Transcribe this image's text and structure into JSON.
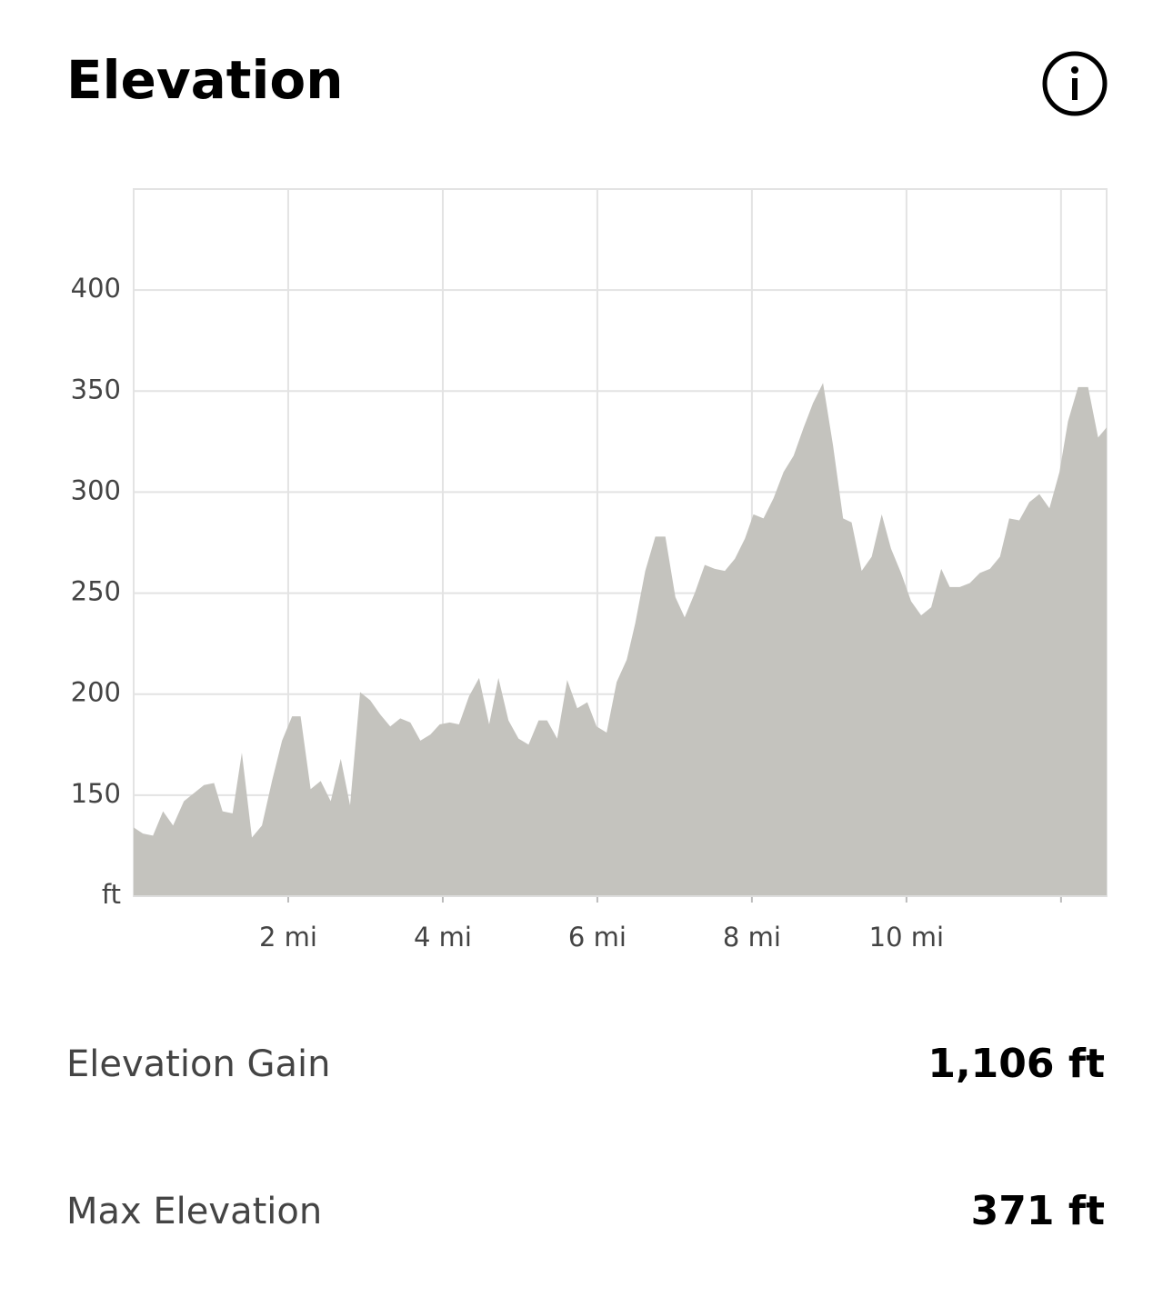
{
  "header": {
    "title": "Elevation"
  },
  "chart_data": {
    "type": "area",
    "color": "#c4c3be",
    "grid": true,
    "x": [
      0,
      0.12,
      0.25,
      0.38,
      0.51,
      0.65,
      0.78,
      0.91,
      1.04,
      1.15,
      1.28,
      1.4,
      1.53,
      1.66,
      1.79,
      1.92,
      2.05,
      2.16,
      2.29,
      2.42,
      2.55,
      2.68,
      2.8,
      2.93,
      3.06,
      3.19,
      3.32,
      3.45,
      3.58,
      3.71,
      3.84,
      3.96,
      4.09,
      4.21,
      4.34,
      4.47,
      4.6,
      4.72,
      4.85,
      4.98,
      5.11,
      5.24,
      5.35,
      5.48,
      5.61,
      5.74,
      5.87,
      5.99,
      6.12,
      6.25,
      6.38,
      6.49,
      6.62,
      6.75,
      6.88,
      7.01,
      7.13,
      7.26,
      7.39,
      7.52,
      7.65,
      7.78,
      7.91,
      8.02,
      8.15,
      8.28,
      8.41,
      8.54,
      8.67,
      8.79,
      8.92,
      9.05,
      9.18,
      9.29,
      9.42,
      9.55,
      9.68,
      9.8,
      9.93,
      10.06,
      10.19,
      10.32,
      10.45,
      10.56,
      10.69,
      10.82,
      10.95,
      11.08,
      11.21,
      11.33,
      11.46,
      11.59,
      11.72,
      11.85,
      11.98,
      12.09,
      12.22,
      12.35,
      12.48,
      12.59
    ],
    "values": [
      134,
      131,
      130,
      142,
      135,
      147,
      151,
      155,
      156,
      142,
      141,
      171,
      129,
      135,
      157,
      177,
      189,
      189,
      153,
      157,
      147,
      168,
      145,
      201,
      197,
      190,
      184,
      188,
      186,
      177,
      180,
      185,
      186,
      185,
      199,
      208,
      185,
      208,
      187,
      178,
      175,
      187,
      187,
      178,
      207,
      193,
      196,
      184,
      181,
      206,
      217,
      235,
      261,
      278,
      278,
      248,
      238,
      250,
      264,
      262,
      261,
      267,
      277,
      289,
      287,
      297,
      310,
      318,
      332,
      344,
      354,
      323,
      287,
      285,
      261,
      268,
      289,
      272,
      260,
      246,
      239,
      243,
      262,
      253,
      253,
      255,
      260,
      262,
      268,
      287,
      286,
      295,
      299,
      292,
      310,
      335,
      352,
      352,
      327,
      332
    ],
    "xlim": [
      0,
      12.59
    ],
    "ylim": [
      100,
      450
    ],
    "xticks": [
      {
        "value": 2,
        "label": "2 mi"
      },
      {
        "value": 4,
        "label": "4 mi"
      },
      {
        "value": 6,
        "label": "6 mi"
      },
      {
        "value": 8,
        "label": "8 mi"
      },
      {
        "value": 10,
        "label": "10 mi"
      },
      {
        "value": 12,
        "label": null
      }
    ],
    "yticks": [
      {
        "value": 100,
        "label": "ft"
      },
      150,
      200,
      250,
      300,
      350,
      400
    ]
  },
  "stats": [
    {
      "label": "Elevation Gain",
      "value": "1,106 ft"
    },
    {
      "label": "Max Elevation",
      "value": "371 ft"
    }
  ]
}
